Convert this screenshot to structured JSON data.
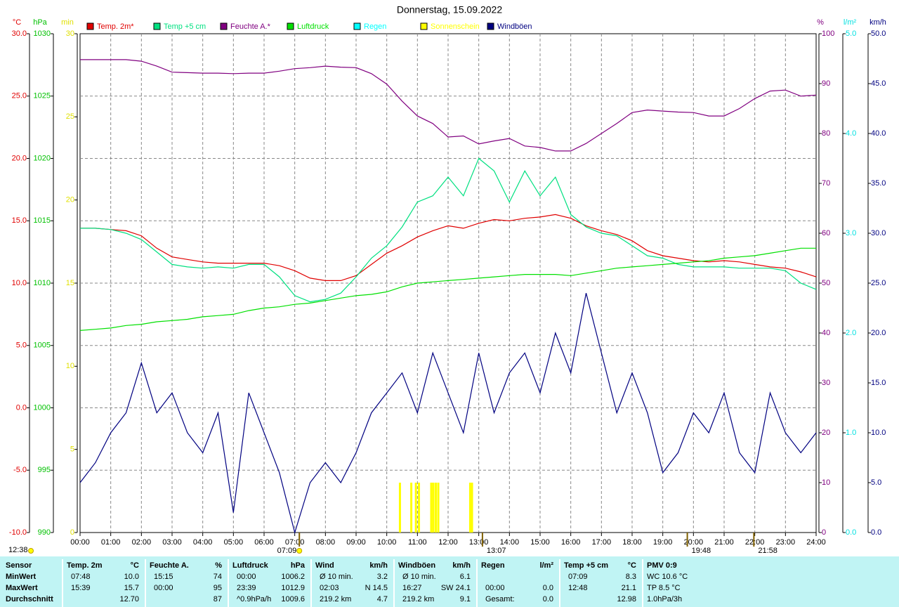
{
  "chart_data": {
    "type": "line",
    "title": "Donnerstag, 15.09.2022",
    "x": [
      0,
      0.5,
      1,
      1.5,
      2,
      2.5,
      3,
      3.5,
      4,
      4.5,
      5,
      5.5,
      6,
      6.5,
      7,
      7.5,
      8,
      8.5,
      9,
      9.5,
      10,
      10.5,
      11,
      11.5,
      12,
      12.5,
      13,
      13.5,
      14,
      14.5,
      15,
      15.5,
      16,
      16.5,
      17,
      17.5,
      18,
      18.5,
      19,
      19.5,
      20,
      20.5,
      21,
      21.5,
      22,
      22.5,
      23,
      23.5,
      24
    ],
    "xlim": [
      0,
      24
    ],
    "xticks": [
      {
        "value": 0,
        "label": "00:00"
      },
      {
        "value": 1,
        "label": "01:00"
      },
      {
        "value": 2,
        "label": "02:00"
      },
      {
        "value": 3,
        "label": "03:00"
      },
      {
        "value": 4,
        "label": "04:00"
      },
      {
        "value": 5,
        "label": "05:00"
      },
      {
        "value": 6,
        "label": "06:00"
      },
      {
        "value": 7,
        "label": "07:00"
      },
      {
        "value": 8,
        "label": "08:00"
      },
      {
        "value": 9,
        "label": "09:00"
      },
      {
        "value": 10,
        "label": "10:00"
      },
      {
        "value": 11,
        "label": "11:00"
      },
      {
        "value": 12,
        "label": "12:00"
      },
      {
        "value": 13,
        "label": "13:00"
      },
      {
        "value": 14,
        "label": "14:00"
      },
      {
        "value": 15,
        "label": "15:00"
      },
      {
        "value": 16,
        "label": "16:00"
      },
      {
        "value": 17,
        "label": "17:00"
      },
      {
        "value": 18,
        "label": "18:00"
      },
      {
        "value": 19,
        "label": "19:00"
      },
      {
        "value": 20,
        "label": "20:00"
      },
      {
        "value": 21,
        "label": "21:00"
      },
      {
        "value": 22,
        "label": "22:00"
      },
      {
        "value": 23,
        "label": "23:00"
      },
      {
        "value": 24,
        "label": "24:00"
      }
    ],
    "grid": true,
    "axes": {
      "temp": {
        "unit": "°C",
        "color": "#e00000",
        "side": "left",
        "lim": [
          -10,
          30
        ],
        "ticks": [
          {
            "value": -10,
            "label": "-10.0"
          },
          {
            "value": -5,
            "label": "-5.0"
          },
          {
            "value": 0,
            "label": "0.0"
          },
          {
            "value": 5,
            "label": "5.0"
          },
          {
            "value": 10,
            "label": "10.0"
          },
          {
            "value": 15,
            "label": "15.0"
          },
          {
            "value": 20,
            "label": "20.0"
          },
          {
            "value": 25,
            "label": "25.0"
          },
          {
            "value": 30,
            "label": "30.0"
          }
        ]
      },
      "press": {
        "unit": "hPa",
        "color": "#00c000",
        "side": "left",
        "lim": [
          990,
          1030
        ],
        "ticks": [
          990,
          995,
          1000,
          1005,
          1010,
          1015,
          1020,
          1025,
          1030
        ]
      },
      "sun": {
        "unit": "min",
        "color": "#e0e000",
        "side": "left",
        "lim": [
          0,
          30
        ],
        "ticks": [
          0,
          5,
          10,
          15,
          20,
          25,
          30
        ]
      },
      "hum": {
        "unit": "%",
        "color": "#800080",
        "side": "right",
        "lim": [
          0,
          100
        ],
        "ticks": [
          0,
          10,
          20,
          30,
          40,
          50,
          60,
          70,
          80,
          90,
          100
        ]
      },
      "rain": {
        "unit": "l/m²",
        "color": "#00e0e0",
        "side": "right",
        "lim": [
          0,
          5
        ],
        "ticks": [
          {
            "value": 0,
            "label": "0.0"
          },
          {
            "value": 1,
            "label": "1.0"
          },
          {
            "value": 2,
            "label": "2.0"
          },
          {
            "value": 3,
            "label": "3.0"
          },
          {
            "value": 4,
            "label": "4.0"
          },
          {
            "value": 5,
            "label": "5.0"
          }
        ]
      },
      "wind": {
        "unit": "km/h",
        "color": "#000080",
        "side": "right",
        "lim": [
          0,
          50
        ],
        "ticks": [
          {
            "value": 0,
            "label": "0.0"
          },
          {
            "value": 5,
            "label": "5.0"
          },
          {
            "value": 10,
            "label": "10.0"
          },
          {
            "value": 15,
            "label": "15.0"
          },
          {
            "value": 20,
            "label": "20.0"
          },
          {
            "value": 25,
            "label": "25.0"
          },
          {
            "value": 30,
            "label": "30.0"
          },
          {
            "value": 35,
            "label": "35.0"
          },
          {
            "value": 40,
            "label": "40.0"
          },
          {
            "value": 45,
            "label": "45.0"
          },
          {
            "value": 50,
            "label": "50.0"
          }
        ]
      }
    },
    "series": [
      {
        "name": "Temp. 2m*",
        "color": "#e00000",
        "axis": "temp",
        "values": [
          14.4,
          14.4,
          14.3,
          14.2,
          13.8,
          12.8,
          12.1,
          11.9,
          11.7,
          11.6,
          11.6,
          11.6,
          11.6,
          11.4,
          11.0,
          10.4,
          10.2,
          10.2,
          10.6,
          11.5,
          12.4,
          13.0,
          13.7,
          14.2,
          14.6,
          14.4,
          14.8,
          15.1,
          15.0,
          15.2,
          15.3,
          15.5,
          15.2,
          14.6,
          14.2,
          13.9,
          13.4,
          12.6,
          12.2,
          12.0,
          11.8,
          11.7,
          11.8,
          11.7,
          11.5,
          11.3,
          11.2,
          10.9,
          10.5
        ]
      },
      {
        "name": "Temp +5 cm",
        "color": "#00e080",
        "axis": "temp",
        "values": [
          14.4,
          14.4,
          14.3,
          14.0,
          13.5,
          12.5,
          11.5,
          11.3,
          11.2,
          11.3,
          11.2,
          11.5,
          11.5,
          10.5,
          9.0,
          8.5,
          8.7,
          9.2,
          10.5,
          12.0,
          13.0,
          14.5,
          16.5,
          17.0,
          18.5,
          17.0,
          20.0,
          19.0,
          16.5,
          19.0,
          17.0,
          18.5,
          15.5,
          14.5,
          14.0,
          13.8,
          13.0,
          12.2,
          12.0,
          11.5,
          11.3,
          11.3,
          11.3,
          11.2,
          11.2,
          11.2,
          11.0,
          10.0,
          9.5
        ]
      },
      {
        "name": "Feuchte A.*",
        "color": "#800080",
        "axis": "hum",
        "values": [
          94.8,
          94.8,
          94.8,
          94.8,
          94.5,
          93.5,
          92.3,
          92.2,
          92.1,
          92.1,
          92.0,
          92.1,
          92.1,
          92.5,
          93.0,
          93.2,
          93.5,
          93.3,
          93.2,
          92.0,
          89.9,
          86.5,
          83.5,
          82.0,
          79.3,
          79.5,
          77.9,
          78.5,
          79.0,
          77.5,
          77.2,
          76.5,
          76.5,
          78.0,
          80.0,
          82.0,
          84.2,
          84.7,
          84.5,
          84.3,
          84.2,
          83.5,
          83.5,
          85.0,
          87.0,
          88.5,
          88.7,
          87.5,
          87.7
        ]
      },
      {
        "name": "Luftdruck",
        "color": "#00e000",
        "axis": "press",
        "values": [
          1006.2,
          1006.3,
          1006.4,
          1006.6,
          1006.7,
          1006.9,
          1007.0,
          1007.1,
          1007.3,
          1007.4,
          1007.5,
          1007.8,
          1008.0,
          1008.1,
          1008.3,
          1008.4,
          1008.6,
          1008.8,
          1009.0,
          1009.1,
          1009.3,
          1009.7,
          1010.0,
          1010.1,
          1010.2,
          1010.3,
          1010.4,
          1010.5,
          1010.6,
          1010.7,
          1010.7,
          1010.7,
          1010.6,
          1010.8,
          1011.0,
          1011.2,
          1011.3,
          1011.4,
          1011.5,
          1011.6,
          1011.7,
          1011.8,
          1012.0,
          1012.1,
          1012.2,
          1012.4,
          1012.6,
          1012.8,
          1012.8
        ]
      },
      {
        "name": "Regen",
        "color": "#00ffff",
        "axis": "rain"
      },
      {
        "name": "Sonnenschein",
        "color": "#ffff00",
        "axis": "sun",
        "kind": "bar",
        "x": [
          10.43,
          10.8,
          10.95,
          11.05,
          11.45,
          11.52,
          11.6,
          11.68,
          12.72,
          12.78
        ],
        "values": [
          3,
          3,
          3,
          3,
          3,
          3,
          3,
          3,
          3,
          3
        ]
      },
      {
        "name": "Windböen",
        "color": "#000080",
        "axis": "wind",
        "values": [
          5,
          7,
          10,
          12,
          17,
          12,
          14,
          10,
          8,
          12,
          2,
          14,
          10,
          6,
          0,
          5,
          7,
          5,
          8,
          12,
          14,
          16,
          12,
          18,
          14,
          10,
          18,
          12,
          16,
          18,
          14,
          20,
          16,
          24,
          18,
          12,
          16,
          12,
          6,
          8,
          12,
          10,
          14,
          8,
          6,
          14,
          10,
          8,
          10
        ]
      }
    ],
    "events": [
      {
        "value": 7.15,
        "label": "07:09"
      },
      {
        "value": 13.12,
        "label": "13:07"
      },
      {
        "value": 19.8,
        "label": "19:48"
      },
      {
        "value": 21.97,
        "label": "21:58"
      }
    ],
    "corner_label": "12:38"
  },
  "table": {
    "header": "Sensor",
    "row_labels": [
      "MinWert",
      "MaxWert",
      "Durchschnitt"
    ],
    "columns": [
      {
        "name": "Temp. 2m",
        "unit": "°C",
        "cells": [
          [
            "07:48",
            "10.0"
          ],
          [
            "15:39",
            "15.7"
          ],
          [
            null,
            "12.70"
          ]
        ]
      },
      {
        "name": "Feuchte A.",
        "unit": "%",
        "cells": [
          [
            "15:15",
            "74"
          ],
          [
            "00:00",
            "95"
          ],
          [
            null,
            "87"
          ]
        ]
      },
      {
        "name": "Luftdruck",
        "unit": "hPa",
        "cells": [
          [
            "00:00",
            "1006.2"
          ],
          [
            "23:39",
            "1012.9"
          ],
          [
            "^0.9hPa/h",
            "1009.6"
          ]
        ]
      },
      {
        "name": "Wind",
        "unit": "km/h",
        "cells": [
          [
            "Ø 10 min.",
            "3.2"
          ],
          [
            "02:03",
            "N 14.5"
          ],
          [
            "219.2 km",
            "4.7"
          ]
        ]
      },
      {
        "name": "Windböen",
        "unit": "km/h",
        "cells": [
          [
            "Ø 10 min.",
            "6.1"
          ],
          [
            "16:27",
            "SW 24.1"
          ],
          [
            "219.2 km",
            "9.1"
          ]
        ]
      },
      {
        "name": "Regen",
        "unit": "l/m²",
        "cells": [
          [
            null,
            null
          ],
          [
            "00:00",
            "0.0"
          ],
          [
            "Gesamt:",
            "0.0"
          ]
        ]
      },
      {
        "name": "Temp +5 cm",
        "unit": "°C",
        "cells": [
          [
            "07:09",
            "8.3"
          ],
          [
            "12:48",
            "21.1"
          ],
          [
            null,
            "12.98"
          ]
        ]
      },
      {
        "name": "PMV 0:9",
        "cells": [
          [
            "WC 10.6 °C"
          ],
          [
            "TP 8.5 °C"
          ],
          [
            "1.0hPa/3h"
          ]
        ]
      }
    ]
  }
}
